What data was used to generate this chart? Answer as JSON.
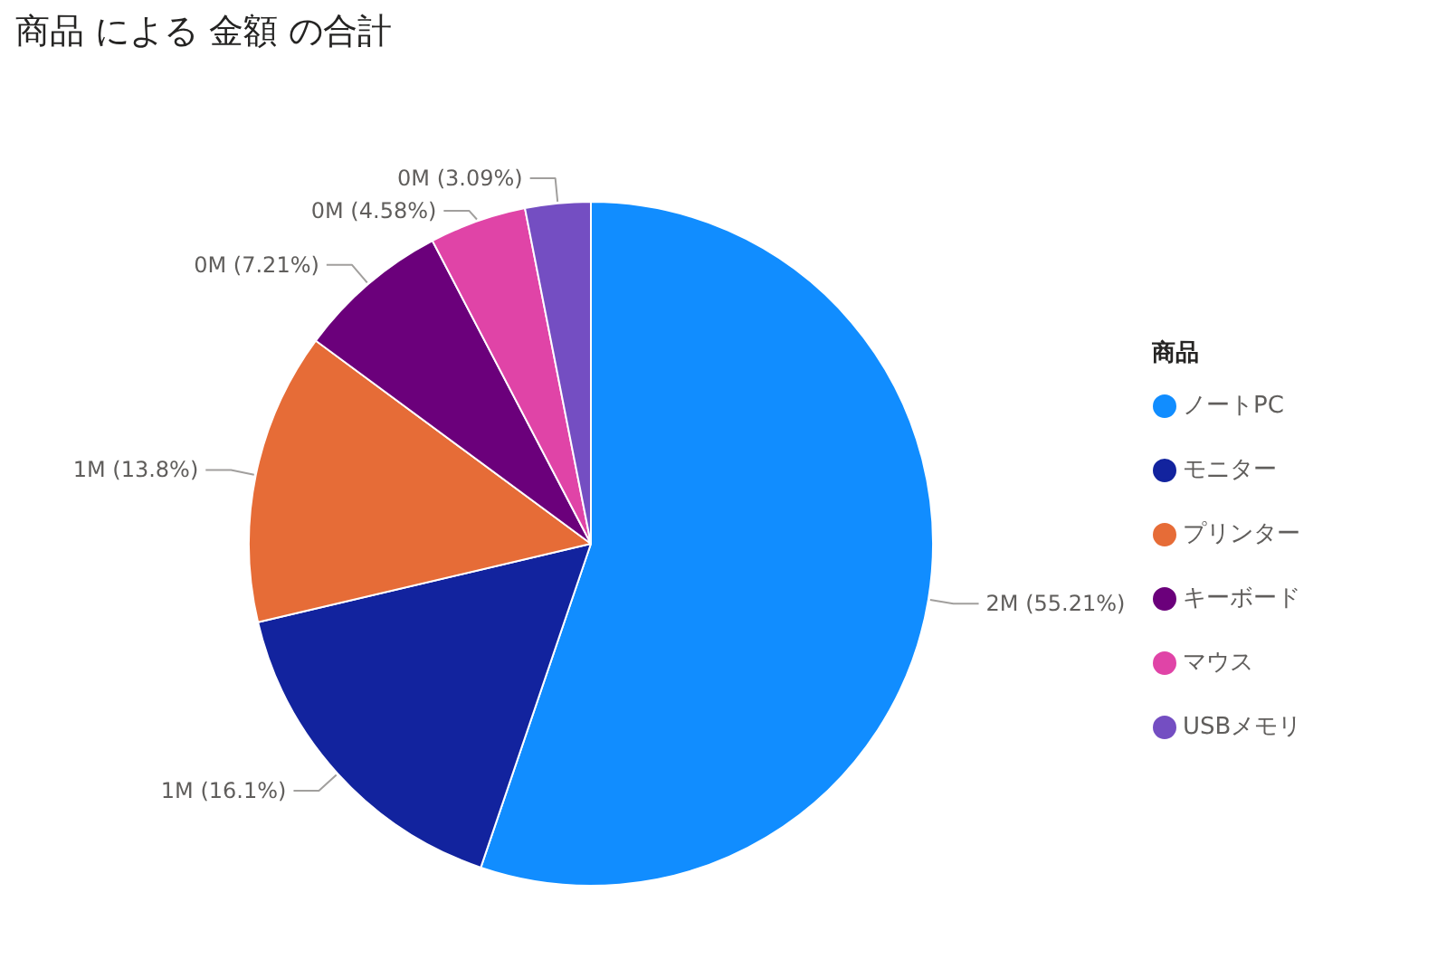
{
  "chart_data": {
    "type": "pie",
    "title": "商品 による 金額 の合計",
    "legend_title": "商品",
    "categories": [
      "ノートPC",
      "モニター",
      "プリンター",
      "キーボード",
      "マウス",
      "USBメモリ"
    ],
    "values": [
      55.21,
      16.1,
      13.8,
      7.21,
      4.58,
      3.09
    ],
    "colors": [
      "#118dff",
      "#12239e",
      "#e66c37",
      "#6b007b",
      "#e044a7",
      "#744ec2"
    ],
    "value_labels": [
      "2M (55.21%)",
      "1M (16.1%)",
      "1M (13.8%)",
      "0M (7.21%)",
      "0M (4.58%)",
      "0M (3.09%)"
    ],
    "legend": "right"
  }
}
